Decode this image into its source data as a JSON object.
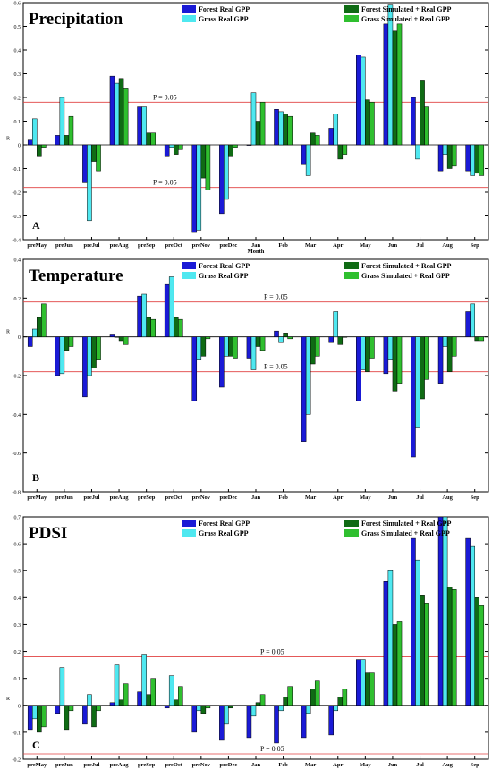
{
  "colors": {
    "forest_real": "#1a1ad6",
    "grass_real": "#4fe8f0",
    "forest_sim": "#0f6b14",
    "grass_sim": "#2fbf2f",
    "threshold": "#e04040"
  },
  "chart_data": [
    {
      "type": "bar",
      "title": "Precipitation",
      "panel_label": "A",
      "xlabel": "Month",
      "ylabel": "R",
      "ylim": [
        -0.4,
        0.6
      ],
      "yticks": [
        -0.4,
        -0.3,
        -0.2,
        -0.1,
        0,
        0.1,
        0.2,
        0.3,
        0.4,
        0.5,
        0.6
      ],
      "ytick_labels": [
        "-0.4",
        "-0.3",
        "-0.2",
        "-0.1",
        "0",
        "0.1",
        "0.2",
        "0.3",
        "0.4",
        "0.5",
        "0.6"
      ],
      "categories": [
        "preMay",
        "preJun",
        "preJul",
        "preAug",
        "preSep",
        "preOct",
        "preNov",
        "preDec",
        "Jan",
        "Feb",
        "Mar",
        "Apr",
        "May",
        "Jun",
        "Jul",
        "Aug",
        "Sep"
      ],
      "thresholds": [
        {
          "value": 0.18,
          "label": "P = 0.05"
        },
        {
          "value": -0.18,
          "label": "P = 0.05"
        }
      ],
      "legend_position": "top-right",
      "series": [
        {
          "name": "Forest Real GPP",
          "color_key": "forest_real",
          "values": [
            0.02,
            0.04,
            -0.16,
            0.29,
            0.16,
            -0.05,
            -0.37,
            -0.29,
            0.0,
            0.15,
            -0.08,
            0.07,
            0.38,
            0.51,
            0.2,
            -0.11,
            -0.11
          ]
        },
        {
          "name": "Grass Real GPP",
          "color_key": "grass_real",
          "values": [
            0.11,
            0.2,
            -0.32,
            0.26,
            0.16,
            -0.01,
            -0.36,
            -0.23,
            0.22,
            0.14,
            -0.13,
            0.13,
            0.37,
            0.59,
            -0.06,
            -0.04,
            -0.13
          ]
        },
        {
          "name": "Forest Simulated + Real GPP",
          "color_key": "forest_sim",
          "values": [
            -0.05,
            0.04,
            -0.07,
            0.28,
            0.05,
            -0.04,
            -0.14,
            -0.05,
            0.1,
            0.13,
            0.05,
            -0.06,
            0.19,
            0.48,
            0.27,
            -0.1,
            -0.12
          ]
        },
        {
          "name": "Grass Simulated + Real GPP",
          "color_key": "grass_sim",
          "values": [
            -0.01,
            0.12,
            -0.11,
            0.24,
            0.05,
            -0.02,
            -0.19,
            -0.01,
            0.18,
            0.12,
            0.04,
            -0.04,
            0.18,
            0.51,
            0.16,
            -0.09,
            -0.13
          ]
        }
      ]
    },
    {
      "type": "bar",
      "title": "Temperature",
      "panel_label": "B",
      "xlabel": "",
      "ylabel": "R",
      "ylim": [
        -0.8,
        0.4
      ],
      "yticks": [
        -0.8,
        -0.6,
        -0.4,
        -0.2,
        0,
        0.2,
        0.4
      ],
      "ytick_labels": [
        "-0.8",
        "-0.6",
        "-0.4",
        "-0.2",
        "0",
        "0.2",
        "0.4"
      ],
      "categories": [
        "preMay",
        "preJun",
        "preJul",
        "preAug",
        "preSep",
        "preOct",
        "preNov",
        "preDec",
        "Jan",
        "Feb",
        "Mar",
        "Apr",
        "May",
        "Jun",
        "Jul",
        "Aug",
        "Sep"
      ],
      "thresholds": [
        {
          "value": 0.18,
          "label": "P = 0.05"
        },
        {
          "value": -0.18,
          "label": "P = 0.05"
        }
      ],
      "legend_position": "top-right",
      "series": [
        {
          "name": "Forest Real GPP",
          "color_key": "forest_real",
          "values": [
            -0.05,
            -0.2,
            -0.31,
            0.01,
            0.21,
            0.27,
            -0.33,
            -0.26,
            -0.11,
            0.03,
            -0.54,
            -0.03,
            -0.33,
            -0.19,
            -0.62,
            -0.24,
            0.13
          ]
        },
        {
          "name": "Grass Real GPP",
          "color_key": "grass_real",
          "values": [
            0.04,
            -0.19,
            -0.2,
            0.0,
            0.22,
            0.31,
            -0.12,
            -0.1,
            -0.17,
            -0.03,
            -0.4,
            0.13,
            -0.17,
            -0.12,
            -0.47,
            -0.05,
            0.17
          ]
        },
        {
          "name": "Forest Simulated + Real GPP",
          "color_key": "forest_sim",
          "values": [
            0.1,
            -0.07,
            -0.16,
            -0.02,
            0.1,
            0.1,
            -0.1,
            -0.1,
            -0.05,
            0.02,
            -0.14,
            -0.04,
            -0.18,
            -0.28,
            -0.32,
            -0.18,
            -0.02
          ]
        },
        {
          "name": "Grass Simulated + Real GPP",
          "color_key": "grass_sim",
          "values": [
            0.17,
            -0.05,
            -0.12,
            -0.04,
            0.09,
            0.09,
            -0.01,
            -0.11,
            -0.07,
            -0.01,
            -0.1,
            0.0,
            -0.11,
            -0.24,
            -0.22,
            -0.1,
            -0.02
          ]
        }
      ]
    },
    {
      "type": "bar",
      "title": "PDSI",
      "panel_label": "C",
      "xlabel": "",
      "ylabel": "R",
      "ylim": [
        -0.2,
        0.7
      ],
      "yticks": [
        -0.2,
        -0.1,
        0,
        0.1,
        0.2,
        0.3,
        0.4,
        0.5,
        0.6,
        0.7
      ],
      "ytick_labels": [
        "-0.2",
        "-0.1",
        "0",
        "0.1",
        "0.2",
        "0.3",
        "0.4",
        "0.5",
        "0.6",
        "0.7"
      ],
      "categories": [
        "preMay",
        "preJun",
        "preJul",
        "preAug",
        "preSep",
        "preOct",
        "preNov",
        "preDec",
        "Jan",
        "Feb",
        "Mar",
        "Apr",
        "May",
        "Jun",
        "Jul",
        "Aug",
        "Sep"
      ],
      "thresholds": [
        {
          "value": 0.18,
          "label": "P = 0.05"
        },
        {
          "value": -0.18,
          "label": "P = 0.05"
        }
      ],
      "legend_position": "top-right",
      "series": [
        {
          "name": "Forest Real GPP",
          "color_key": "forest_real",
          "values": [
            -0.09,
            -0.03,
            -0.07,
            0.01,
            0.05,
            -0.01,
            -0.1,
            -0.13,
            -0.12,
            -0.14,
            -0.12,
            -0.11,
            0.17,
            0.46,
            0.62,
            0.7,
            0.62
          ]
        },
        {
          "name": "Grass Real GPP",
          "color_key": "grass_real",
          "values": [
            -0.05,
            0.14,
            0.04,
            0.15,
            0.19,
            0.11,
            -0.02,
            -0.07,
            -0.04,
            -0.02,
            -0.03,
            -0.02,
            0.17,
            0.5,
            0.54,
            0.7,
            0.59
          ]
        },
        {
          "name": "Forest Simulated + Real GPP",
          "color_key": "forest_sim",
          "values": [
            -0.1,
            -0.09,
            -0.08,
            0.02,
            0.04,
            0.02,
            -0.03,
            -0.01,
            0.01,
            0.03,
            0.06,
            0.03,
            0.12,
            0.3,
            0.41,
            0.44,
            0.4
          ]
        },
        {
          "name": "Grass Simulated + Real GPP",
          "color_key": "grass_sim",
          "values": [
            -0.08,
            -0.02,
            -0.02,
            0.08,
            0.1,
            0.07,
            -0.01,
            0.0,
            0.04,
            0.07,
            0.09,
            0.06,
            0.12,
            0.31,
            0.38,
            0.43,
            0.37
          ]
        }
      ]
    }
  ]
}
